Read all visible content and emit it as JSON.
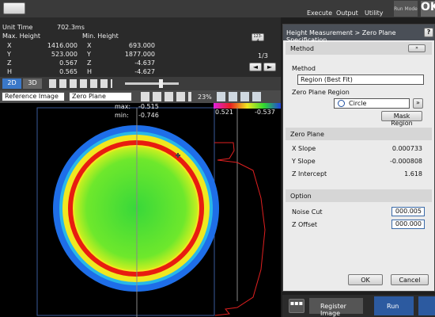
{
  "top_bar": {
    "execute": "Execute",
    "output": "Output",
    "utility": "Utility",
    "run_mode": "Run Mode",
    "ok": "OK"
  },
  "info": {
    "unit_time_label": "Unit Time",
    "unit_time": "702.3ms",
    "max_label": "Max. Height",
    "min_label": "Min. Height",
    "max_rows": [
      [
        "X",
        "1416.000"
      ],
      [
        "Y",
        "523.000"
      ],
      [
        "Z",
        "0.567"
      ],
      [
        "H",
        "0.565"
      ]
    ],
    "min_rows": [
      [
        "X",
        "693.000"
      ],
      [
        "Y",
        "1877.000"
      ],
      [
        "Z",
        "-4.637"
      ],
      [
        "H",
        "-4.627"
      ]
    ],
    "page": "1/3",
    "tag": "123-4"
  },
  "toolbar": {
    "btn_2d": "2D",
    "btn_3d": "3D",
    "zoom": "23%"
  },
  "view": {
    "image_select": "Reference Image",
    "plane_select": "Zero Plane",
    "max_label": "max:",
    "max_value": "-0.515",
    "min_label": "min:",
    "min_value": "-0.746",
    "scale_high": "0.521",
    "scale_low": "-0.537"
  },
  "dialog": {
    "title": "Height Measurement > Zero Plane Specification",
    "help": "?",
    "method_section": "Method",
    "method_label": "Method",
    "method_value": "Region (Best Fit)",
    "region_label": "Zero Plane Region",
    "region_value": "Circle",
    "mask_button": "Mask Region",
    "zero_section": "Zero Plane",
    "rows": [
      [
        "X Slope",
        "0.000733"
      ],
      [
        "Y Slope",
        "-0.000808"
      ],
      [
        "Z Intercept",
        "1.618"
      ]
    ],
    "option_section": "Option",
    "options": [
      [
        "Noise Cut",
        "000.005"
      ],
      [
        "Z Offset",
        "000.000"
      ]
    ],
    "ok": "OK",
    "cancel": "Cancel"
  },
  "bottom_bar": {
    "register": "Register Image",
    "run": "Run"
  }
}
